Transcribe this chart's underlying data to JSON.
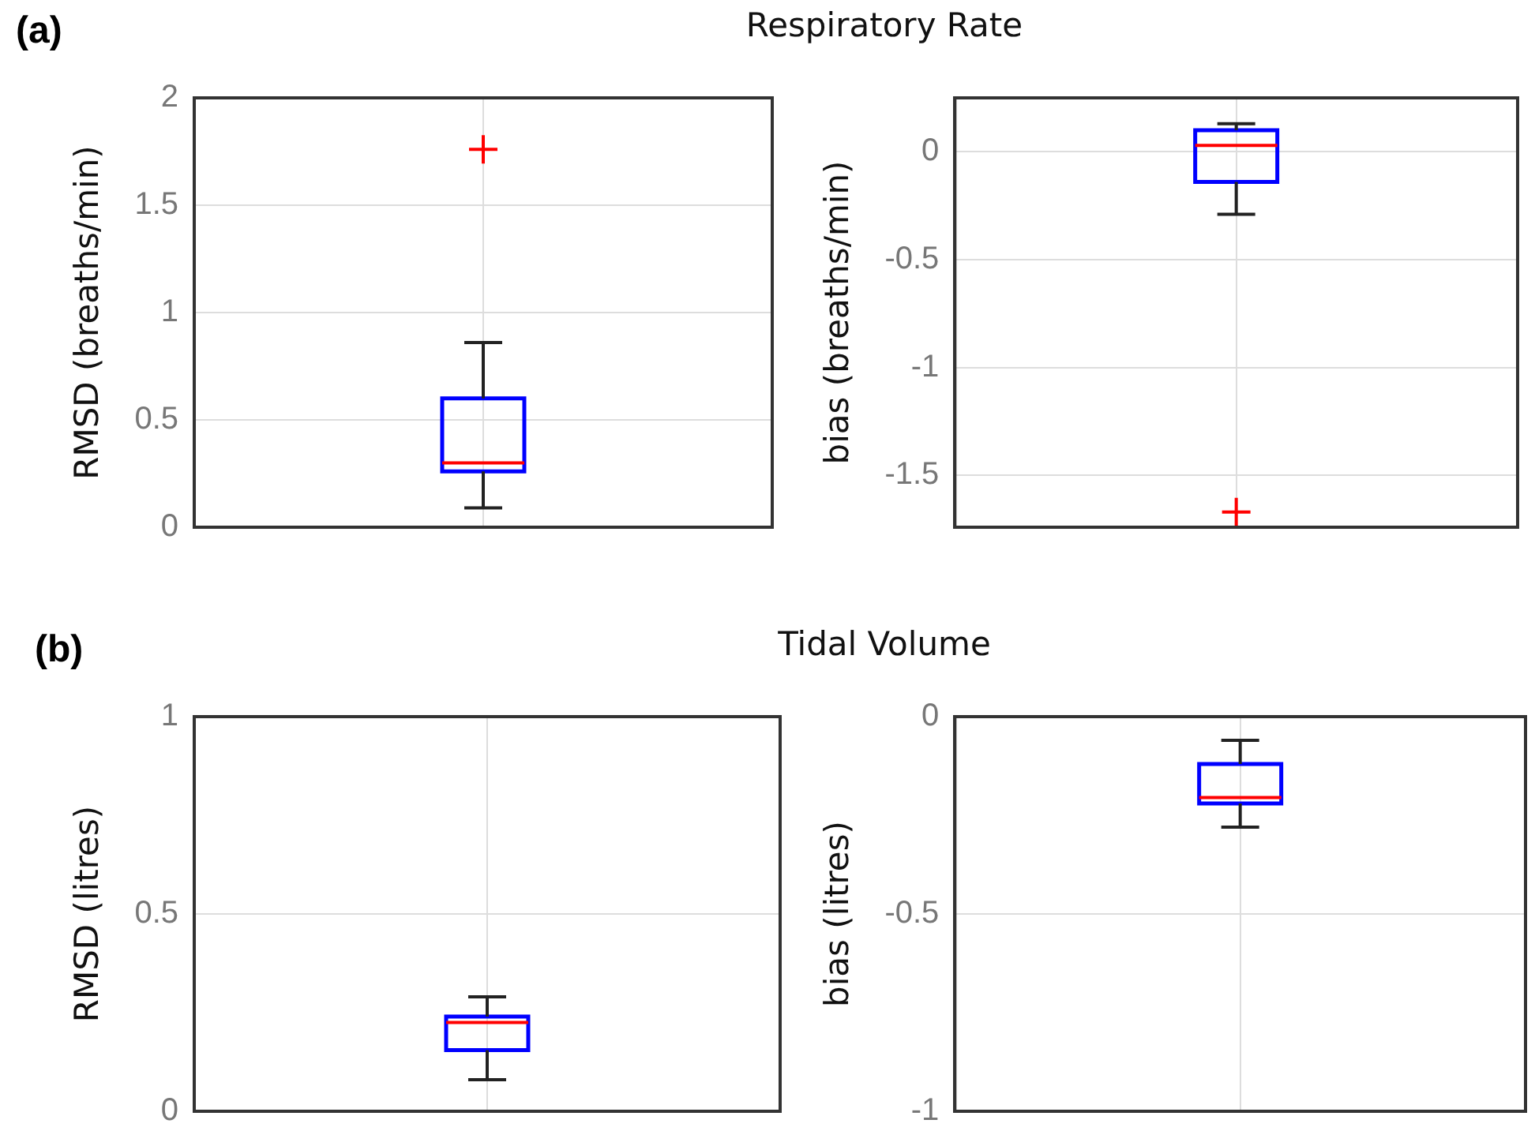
{
  "chart_data": [
    {
      "type": "box",
      "title": "Respiratory Rate",
      "annotations": [
        "(a)"
      ],
      "ylabel": "RMSD (breaths/min)",
      "categories": [
        null
      ],
      "color": "#0000ff",
      "ylim": [
        0,
        2
      ],
      "yticks": [
        0,
        0.5,
        1,
        1.5,
        2
      ],
      "grid": true,
      "tick_labels": "y",
      "boxes": [
        {
          "low": 0.09,
          "q1": 0.26,
          "median": 0.3,
          "q3": 0.6,
          "high": 0.86,
          "outliers": [
            1.76
          ]
        }
      ]
    },
    {
      "type": "box",
      "ylabel": "bias (breaths/min)",
      "categories": [
        null
      ],
      "color": "#0000ff",
      "ylim": [
        -1.74,
        0.25
      ],
      "yticks": [
        0,
        -0.5,
        -1,
        -1.5
      ],
      "grid": true,
      "tick_labels": "y",
      "boxes": [
        {
          "low": -0.29,
          "q1": -0.14,
          "median": 0.03,
          "q3": 0.1,
          "high": 0.13,
          "outliers": [
            -1.67
          ]
        }
      ]
    },
    {
      "type": "box",
      "title": "Tidal Volume",
      "annotations": [
        "(b)"
      ],
      "ylabel": "RMSD (litres)",
      "categories": [
        null
      ],
      "color": "#0000ff",
      "ylim": [
        0,
        1
      ],
      "yticks": [
        0,
        0.5,
        1
      ],
      "grid": true,
      "tick_labels": "y",
      "boxes": [
        {
          "low": 0.08,
          "q1": 0.155,
          "median": 0.225,
          "q3": 0.24,
          "high": 0.29
        }
      ]
    },
    {
      "type": "box",
      "ylabel": "bias (litres)",
      "categories": [
        null
      ],
      "color": "#0000ff",
      "ylim": [
        -1,
        0
      ],
      "yticks": [
        0,
        -0.5,
        -1
      ],
      "grid": true,
      "tick_labels": "y",
      "boxes": [
        {
          "low": -0.28,
          "q1": -0.22,
          "median": -0.205,
          "q3": -0.12,
          "high": -0.06
        }
      ]
    }
  ]
}
